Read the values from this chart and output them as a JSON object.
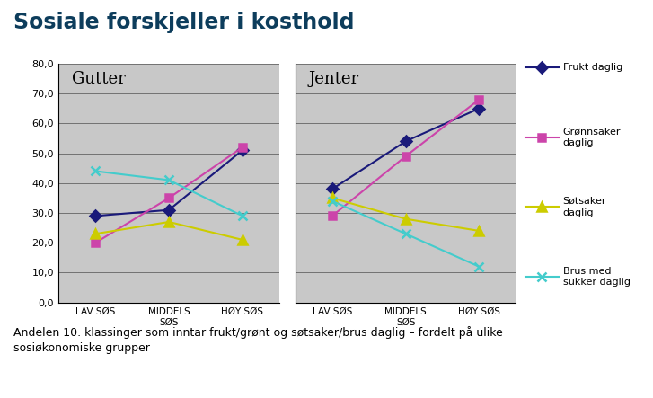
{
  "title": "Sosiale forskjeller i kosthold",
  "title_color": "#0d3d5c",
  "background_color": "#ffffff",
  "plot_bg_color": "#c8c8c8",
  "x_labels_gutter": [
    "LAV SØS",
    "MIDDELS\nSØS",
    "HØY SØS"
  ],
  "x_labels_jenter": [
    "LAV SØS",
    "MIDDELS\nSØS",
    "HØY SØS"
  ],
  "ylim": [
    0,
    80
  ],
  "yticks": [
    0,
    10,
    20,
    30,
    40,
    50,
    60,
    70,
    80
  ],
  "gutter_label": "Gutter",
  "jenter_label": "Jenter",
  "series": [
    {
      "name": "Frukt daglig",
      "color": "#1a1a7a",
      "marker": "D",
      "markersize": 6,
      "gutter": [
        29,
        31,
        51
      ],
      "jenter": [
        38,
        54,
        65
      ]
    },
    {
      "name": "Grønnsaker\ndaglig",
      "color": "#cc44aa",
      "marker": "s",
      "markersize": 6,
      "gutter": [
        20,
        35,
        52
      ],
      "jenter": [
        29,
        49,
        68
      ]
    },
    {
      "name": "Søtsaker\ndaglig",
      "color": "#cccc00",
      "marker": "^",
      "markersize": 7,
      "gutter": [
        23,
        27,
        21
      ],
      "jenter": [
        35,
        28,
        24
      ]
    },
    {
      "name": "Brus med\nsukker daglig",
      "color": "#44cccc",
      "marker": "x",
      "markersize": 7,
      "gutter": [
        44,
        41,
        29
      ],
      "jenter": [
        34,
        23,
        12
      ]
    }
  ],
  "caption": "Andelen 10. klassinger som inntar frukt/grønt og søtsaker/brus daglig – fordelt på ulike\nsosiøkonomiske grupper"
}
